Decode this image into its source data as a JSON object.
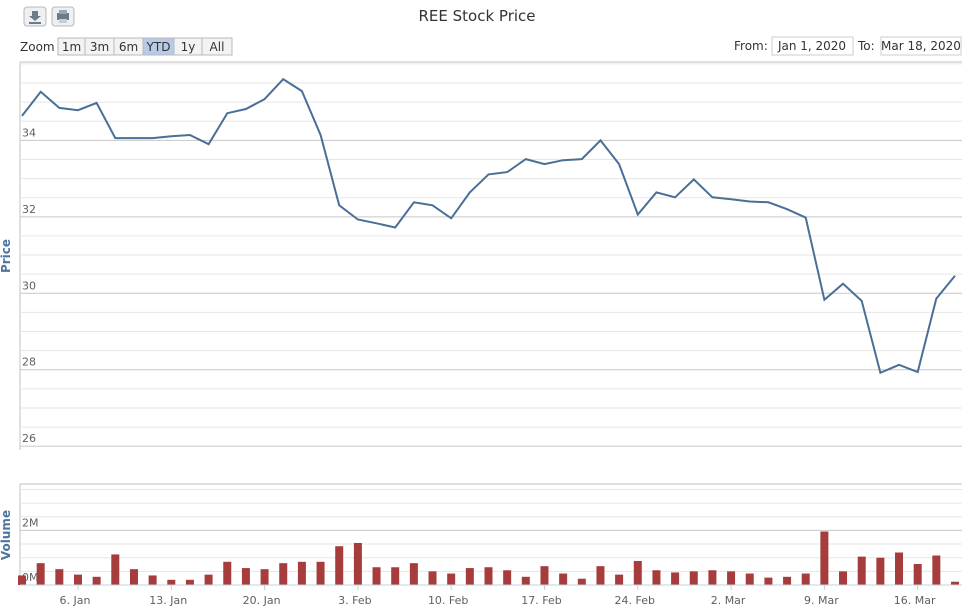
{
  "ui": {
    "zoom_label": "Zoom",
    "range_buttons": [
      "1m",
      "3m",
      "6m",
      "YTD",
      "1y",
      "All"
    ],
    "selected_button": 3,
    "from_label": "From:",
    "from_value": "Jan 1, 2020",
    "to_label": "To:",
    "to_value": "Mar 18, 2020"
  },
  "chart_data": [
    {
      "type": "line",
      "title": "REE Stock Price",
      "y_label": "Price",
      "color": "#4a6f96",
      "values": [
        34.64,
        35.27,
        34.85,
        34.79,
        34.98,
        34.06,
        34.06,
        34.06,
        34.11,
        34.14,
        33.9,
        34.71,
        34.82,
        35.08,
        35.6,
        35.29,
        34.14,
        32.3,
        31.93,
        31.83,
        31.72,
        32.38,
        32.3,
        31.96,
        32.64,
        33.11,
        33.17,
        33.51,
        33.38,
        33.48,
        33.51,
        34.0,
        33.38,
        32.06,
        32.64,
        32.51,
        32.98,
        32.51,
        32.46,
        32.4,
        32.38,
        32.2,
        31.98,
        29.83,
        30.25,
        29.8,
        27.92,
        28.13,
        27.94,
        29.86,
        30.46
      ],
      "ylim": [
        25.9,
        36.05
      ],
      "yticks": [
        26,
        28,
        30,
        32,
        34
      ],
      "grid": true
    },
    {
      "type": "bar",
      "y_label": "Volume",
      "color": "#a63c3c",
      "categories": [
        null,
        null,
        null,
        "6. Jan",
        null,
        null,
        null,
        null,
        "13. Jan",
        null,
        null,
        null,
        null,
        "20. Jan",
        null,
        null,
        null,
        null,
        "3. Feb",
        null,
        null,
        null,
        null,
        "10. Feb",
        null,
        null,
        null,
        null,
        "17. Feb",
        null,
        null,
        null,
        null,
        "24. Feb",
        null,
        null,
        null,
        null,
        "2. Mar",
        null,
        null,
        null,
        null,
        "9. Mar",
        null,
        null,
        null,
        null,
        "16. Mar",
        null,
        null
      ],
      "values": [
        350000,
        800000,
        580000,
        380000,
        300000,
        1120000,
        580000,
        350000,
        190000,
        190000,
        380000,
        850000,
        620000,
        580000,
        800000,
        850000,
        850000,
        1420000,
        1540000,
        650000,
        650000,
        800000,
        500000,
        420000,
        620000,
        650000,
        540000,
        300000,
        690000,
        420000,
        230000,
        690000,
        380000,
        880000,
        540000,
        460000,
        500000,
        540000,
        500000,
        420000,
        270000,
        300000,
        420000,
        1960000,
        500000,
        1040000,
        1000000,
        1190000,
        770000,
        1080000,
        120000
      ],
      "ylim": [
        0,
        3700000
      ],
      "yticks": [
        {
          "value": 0,
          "label": "0M"
        },
        {
          "value": 2000000,
          "label": "2M"
        }
      ],
      "grid": true
    }
  ]
}
